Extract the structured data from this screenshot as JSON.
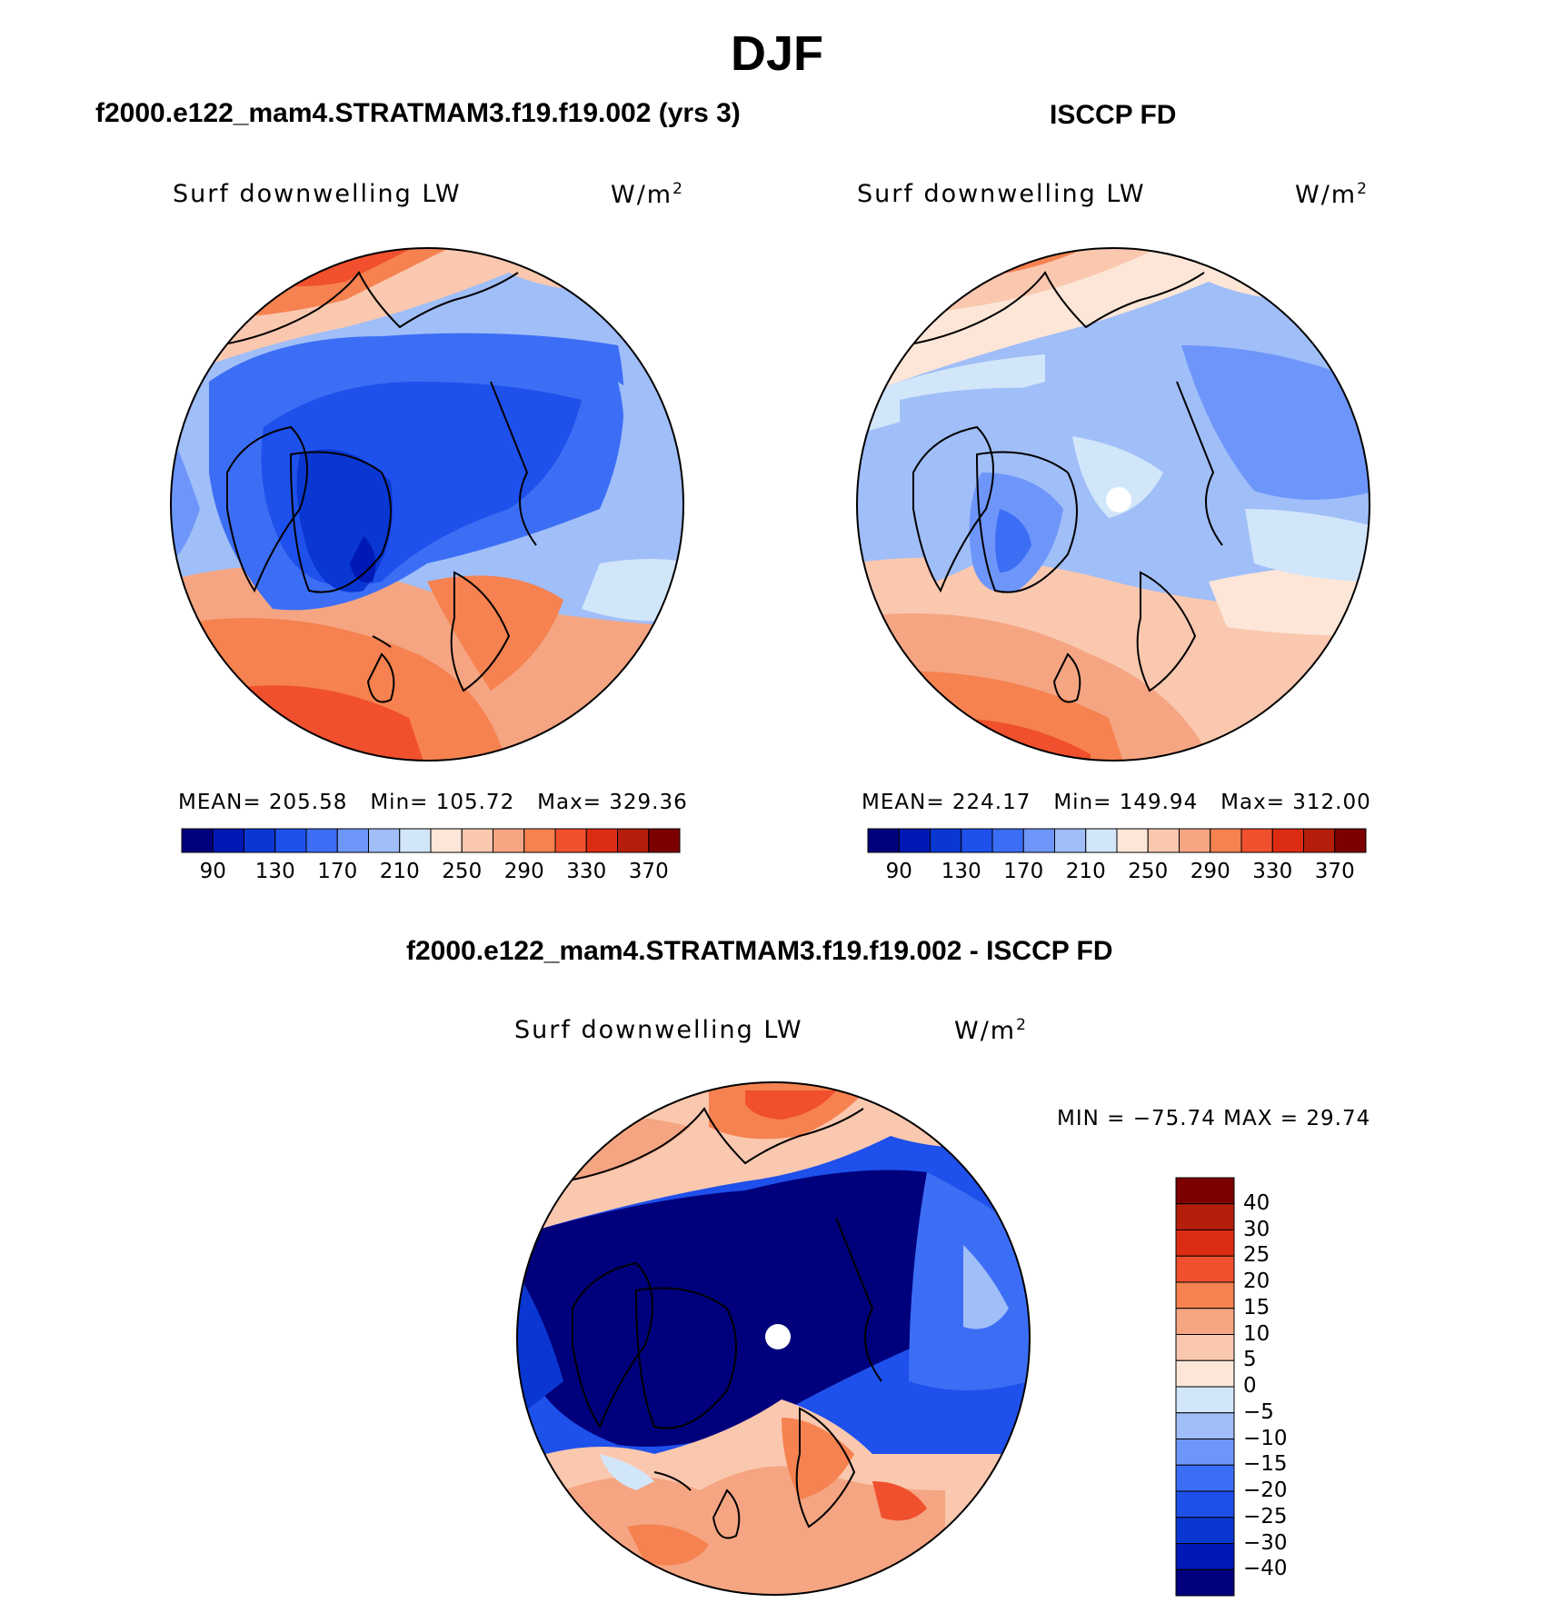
{
  "main_title": "DJF",
  "panels": [
    {
      "title": "f2000.e122_mam4.STRATMAM3.f19.f19.002 (yrs 3)",
      "variable": "Surf downwelling LW",
      "units": "W/m",
      "units_sup": "2",
      "stats": {
        "mean": "MEAN= 205.58",
        "min": "Min= 105.72",
        "max": "Max= 329.36"
      },
      "pole_hole": false
    },
    {
      "title": "ISCCP FD",
      "variable": "Surf downwelling LW",
      "units": "W/m",
      "units_sup": "2",
      "stats": {
        "mean": "MEAN= 224.17",
        "min": "Min= 149.94",
        "max": "Max= 312.00"
      },
      "pole_hole": true
    }
  ],
  "diff_panel": {
    "title": "f2000.e122_mam4.STRATMAM3.f19.f19.002 - ISCCP FD",
    "variable": "Surf downwelling LW",
    "units": "W/m",
    "units_sup": "2",
    "minmax": "MIN = −75.74 MAX =   29.74",
    "pole_hole": true
  },
  "colorbar_horizontal": {
    "colors": [
      "#00007d",
      "#0019b4",
      "#0a37d2",
      "#1e50eb",
      "#3c6ef5",
      "#6e96fa",
      "#a0bef8",
      "#d2e6fa",
      "#fde6d7",
      "#fac8af",
      "#f5a582",
      "#f58250",
      "#f0502d",
      "#dc2d14",
      "#b41e0a",
      "#7d0000"
    ],
    "tick_labels": [
      "90",
      "130",
      "170",
      "210",
      "250",
      "290",
      "330",
      "370"
    ]
  },
  "colorbar_vertical": {
    "colors": [
      "#7d0000",
      "#b41e0a",
      "#dc2d14",
      "#f0502d",
      "#f58250",
      "#f5a582",
      "#fac8af",
      "#fde6d7",
      "#d2e6fa",
      "#a0bef8",
      "#6e96fa",
      "#3c6ef5",
      "#1e50eb",
      "#0a37d2",
      "#0019b4",
      "#00007d"
    ],
    "tick_labels": [
      "40",
      "30",
      "25",
      "20",
      "15",
      "10",
      "5",
      "0",
      "−5",
      "−10",
      "−15",
      "−20",
      "−25",
      "−30",
      "−40"
    ]
  }
}
